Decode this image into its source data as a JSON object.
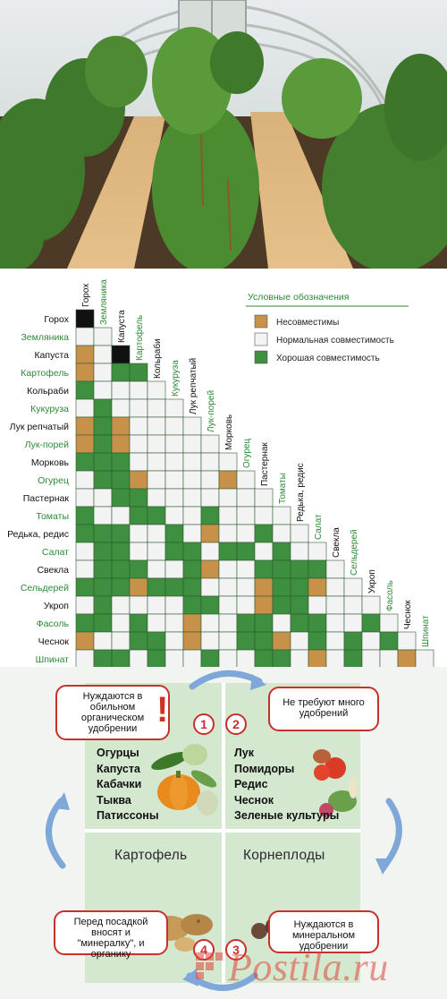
{
  "chart": {
    "rows": [
      {
        "label": "Горох",
        "color": "black"
      },
      {
        "label": "Земляника",
        "color": "green"
      },
      {
        "label": "Капуста",
        "color": "black"
      },
      {
        "label": "Картофель",
        "color": "green"
      },
      {
        "label": "Кольраби",
        "color": "black"
      },
      {
        "label": "Кукуруза",
        "color": "green"
      },
      {
        "label": "Лук репчатый",
        "color": "black"
      },
      {
        "label": "Лук-порей",
        "color": "green"
      },
      {
        "label": "Морковь",
        "color": "black"
      },
      {
        "label": "Огурец",
        "color": "green"
      },
      {
        "label": "Пастернак",
        "color": "black"
      },
      {
        "label": "Томаты",
        "color": "green"
      },
      {
        "label": "Редька, редис",
        "color": "black"
      },
      {
        "label": "Салат",
        "color": "green"
      },
      {
        "label": "Свекла",
        "color": "black"
      },
      {
        "label": "Сельдерей",
        "color": "green"
      },
      {
        "label": "Укроп",
        "color": "black"
      },
      {
        "label": "Фасоль",
        "color": "green"
      },
      {
        "label": "Чеснок",
        "color": "black"
      },
      {
        "label": "Шпинат",
        "color": "green"
      }
    ],
    "legend": {
      "title": "Условные обозначения",
      "items": [
        {
          "key": "I",
          "label": "Несовместимы",
          "color": "#c8914a"
        },
        {
          "key": "N",
          "label": "Нормальная совместимость",
          "color": "#f3f3f3"
        },
        {
          "key": "G",
          "label": "Хорошая совместимость",
          "color": "#3e8f3f"
        }
      ]
    },
    "colors": {
      "I": "#c8914a",
      "N": "#f3f3f3",
      "G": "#3e8f3f",
      "D": "#111111"
    },
    "matrix": [
      "D",
      "NN",
      "IND",
      "INGG",
      "GNNNN",
      "NGNNNN",
      "IGINNN",
      "IGINNNN",
      "GGGNNNNN",
      "NGGINNNNI",
      "NNGGNNNNNN",
      "GNNGGNNGNNN",
      "GGGNNGNINNGN",
      "NGGNNGGNGGNGN",
      "NGGGNNGINNGGGG",
      "GGGIGGGNNNIGGIN",
      "NGNNNNGGNNIGGNNN",
      "GGNGNNINNGGNGGNNG",
      "INNGGNINNGGINGNGNG",
      "NGGNGNNGNNGGNINGNNI"
    ]
  },
  "rotation": {
    "q1_note": "Нуждаются в обильном органическом удобрении",
    "q1_list": [
      "Огурцы",
      "Капуста",
      "Кабачки",
      "Тыква",
      "Патиссоны"
    ],
    "q2_note": "Не требуют много удобрений",
    "q2_list": [
      "Лук",
      "Помидоры",
      "Редис",
      "Чеснок",
      "Зеленые культуры"
    ],
    "q3_title": "Корнеплоды",
    "q3_note": "Нуждаются в минеральном удобрении",
    "q4_title": "Картофель",
    "q4_note": "Перед посадкой вносят и \"минералку\", и органику",
    "numbers": [
      "1",
      "2",
      "3",
      "4"
    ],
    "exclaim": "!",
    "colors": {
      "panel": "#d3e8cf",
      "arrow": "#7fa8d8",
      "accent": "#c9302c"
    }
  },
  "watermark": {
    "text": "Postila.ru"
  }
}
